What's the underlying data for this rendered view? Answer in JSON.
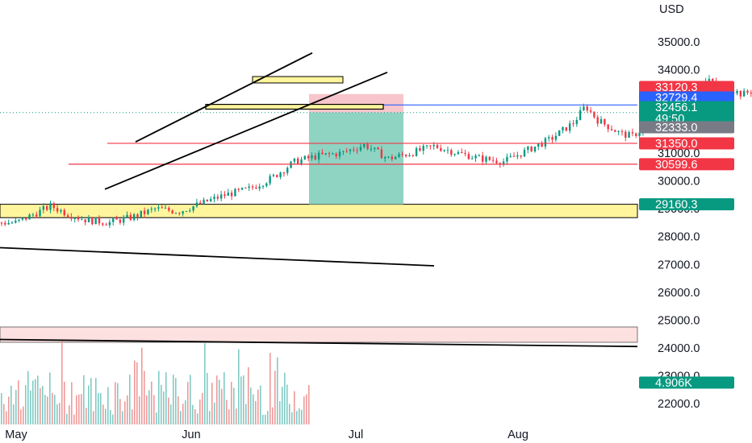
{
  "chart_data": {
    "type": "candlestick",
    "currency": "USD",
    "y_axis": {
      "ticks": [
        "35000.0",
        "34000.0",
        "33000.0",
        "32000.0",
        "31000.0",
        "30000.0",
        "29000.0",
        "28000.0",
        "27000.0",
        "26000.0",
        "25000.0",
        "24000.0",
        "23000.0",
        "22000.0"
      ],
      "range": [
        21500,
        35800
      ]
    },
    "x_axis": {
      "ticks": [
        "May",
        "Jun",
        "Jul",
        "Aug"
      ]
    },
    "price_series": {
      "approx_close": [
        [
          0,
          28500
        ],
        [
          3,
          28800
        ],
        [
          6,
          29100
        ],
        [
          9,
          28800
        ],
        [
          12,
          28600
        ],
        [
          16,
          28500
        ],
        [
          20,
          28700
        ],
        [
          24,
          29000
        ],
        [
          28,
          28900
        ],
        [
          32,
          29200
        ],
        [
          36,
          29500
        ],
        [
          40,
          29700
        ],
        [
          44,
          30100
        ],
        [
          48,
          30700
        ],
        [
          52,
          30900
        ],
        [
          56,
          31000
        ],
        [
          60,
          31300
        ],
        [
          64,
          30800
        ],
        [
          68,
          31000
        ],
        [
          72,
          31250
        ],
        [
          76,
          31000
        ],
        [
          80,
          30800
        ],
        [
          84,
          30700
        ],
        [
          88,
          31100
        ],
        [
          92,
          31500
        ],
        [
          96,
          32100
        ],
        [
          98,
          32700
        ],
        [
          100,
          32200
        ],
        [
          102,
          31950
        ],
        [
          104,
          31700
        ],
        [
          106,
          31600
        ],
        [
          108,
          31900
        ],
        [
          110,
          32300
        ],
        [
          113,
          32700
        ],
        [
          116,
          33300
        ],
        [
          119,
          33600
        ],
        [
          122,
          33400
        ],
        [
          125,
          33100
        ],
        [
          128,
          33350
        ],
        [
          131,
          33300
        ],
        [
          134,
          32900
        ],
        [
          136,
          32500
        ]
      ]
    },
    "price_tags": [
      {
        "label": "33120.3",
        "value": 33120.3,
        "color": "#f23645"
      },
      {
        "label": "32729.4",
        "value": 32729.4,
        "color": "#2962ff"
      },
      {
        "label": "32456.1",
        "value": 32456.1,
        "color": "#089981",
        "subtext": "49:50"
      },
      {
        "label": "32333.0",
        "value": 32333.0,
        "color": "#787b86"
      },
      {
        "label": "31350.0",
        "value": 31350.0,
        "color": "#f23645"
      },
      {
        "label": "30599.6",
        "value": 30599.6,
        "color": "#f23645"
      },
      {
        "label": "29160.3",
        "value": 29160.3,
        "color": "#089981"
      },
      {
        "label": "4.906K",
        "value": null,
        "color": "#089981",
        "pane": "volume"
      }
    ],
    "annotations": {
      "horizontal_lines": [
        {
          "value": 32729.4,
          "color": "#2962ff"
        },
        {
          "value": 31350.0,
          "color": "#f23645"
        },
        {
          "value": 30599.6,
          "color": "#f23645"
        }
      ],
      "support_zone": {
        "from": 28680,
        "to": 29160.3,
        "color": "#fff59d"
      },
      "resistance_zones": [
        {
          "from": 33520,
          "to": 33750,
          "color": "#fff59d"
        },
        {
          "from": 32580,
          "to": 32750,
          "color": "#fff59d"
        }
      ],
      "volume_zone": {
        "from": 24200,
        "to": 24750,
        "color": "#fde0e0"
      },
      "short_position": {
        "entry": 32456.1,
        "stop": 33120.3,
        "target": 29160.3
      },
      "trend_channel": "rising wedge / channel",
      "trendlines": 3
    },
    "volume": {
      "last_label": "4.906K",
      "colors": [
        "#ef9a9a",
        "#80cbc4"
      ]
    },
    "grid": false,
    "colors": {
      "up": "#089981",
      "down": "#f23645",
      "profit": "#8fd4c3",
      "loss": "#f7c5cb"
    }
  }
}
